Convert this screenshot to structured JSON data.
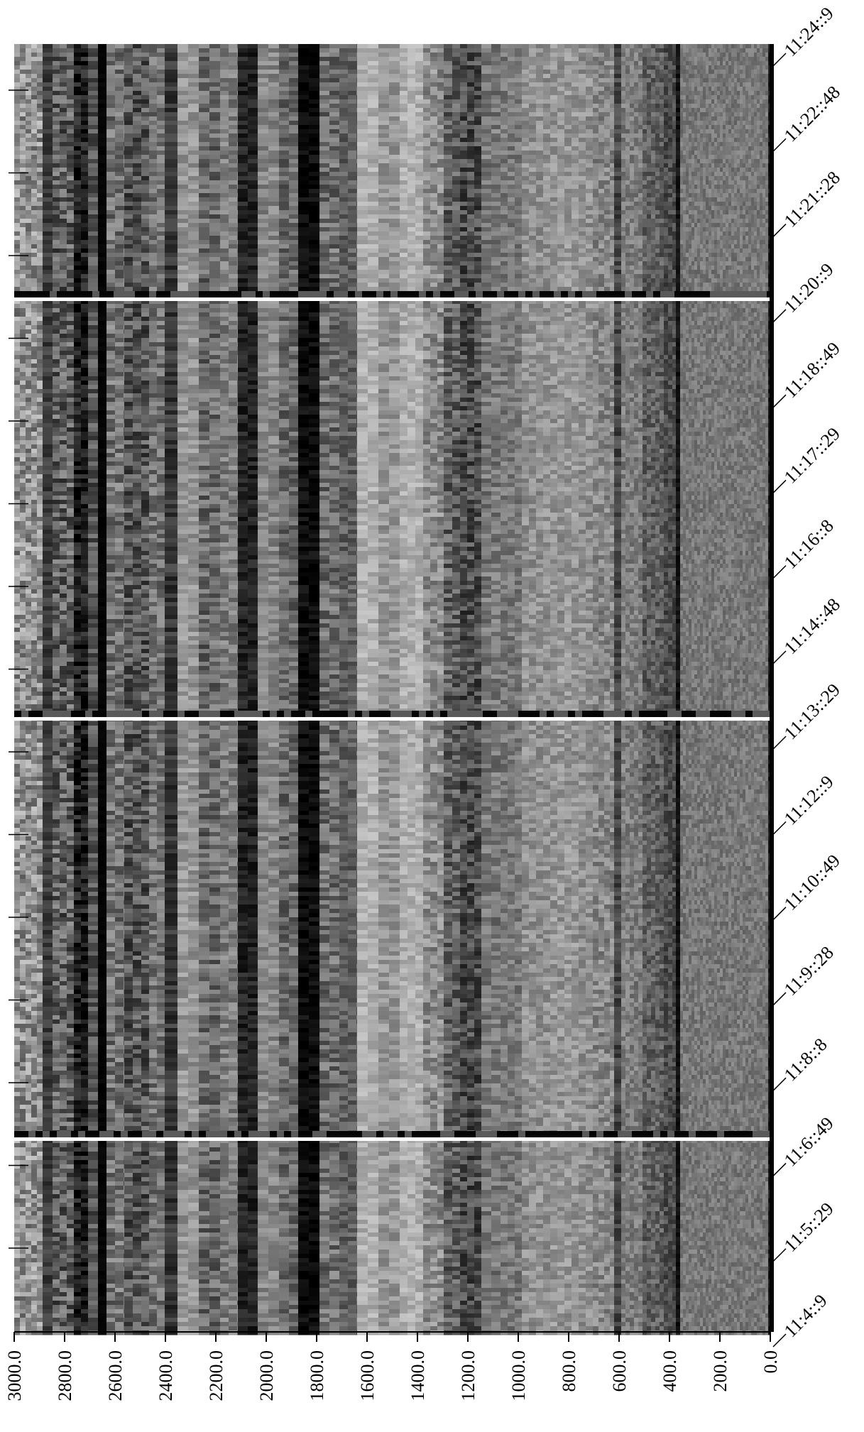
{
  "chart_data": {
    "type": "heatmap",
    "title": "",
    "xlabel": "",
    "ylabel": "",
    "colormap": "grayscale",
    "x_axis": {
      "position": "bottom",
      "range": [
        3000.0,
        0.0
      ],
      "ticks": [
        3000.0,
        2800.0,
        2600.0,
        2400.0,
        2200.0,
        2000.0,
        1800.0,
        1600.0,
        1400.0,
        1200.0,
        1000.0,
        800.0,
        600.0,
        400.0,
        200.0,
        0.0
      ],
      "tick_labels": [
        "3000.0",
        "2800.0",
        "2600.0",
        "2400.0",
        "2200.0",
        "2000.0",
        "1800.0",
        "1600.0",
        "1400.0",
        "1200.0",
        "1000.0",
        "800.0",
        "600.0",
        "400.0",
        "200.0",
        "0.0"
      ]
    },
    "y_axis": {
      "position": "right",
      "tick_labels": [
        "11:24::9",
        "11:22::48",
        "11:21::28",
        "11:20::9",
        "11:18::49",
        "11:17::29",
        "11:16::8",
        "11:14::48",
        "11:13::29",
        "11:12::9",
        "11:10::49",
        "11:9::28",
        "11:8::8",
        "11:6::49",
        "11:5::29",
        "11:4::9"
      ]
    },
    "segment_separators": [
      "11:20::9",
      "11:13::29",
      "11:6::49"
    ],
    "grid": false,
    "legend": "none"
  }
}
